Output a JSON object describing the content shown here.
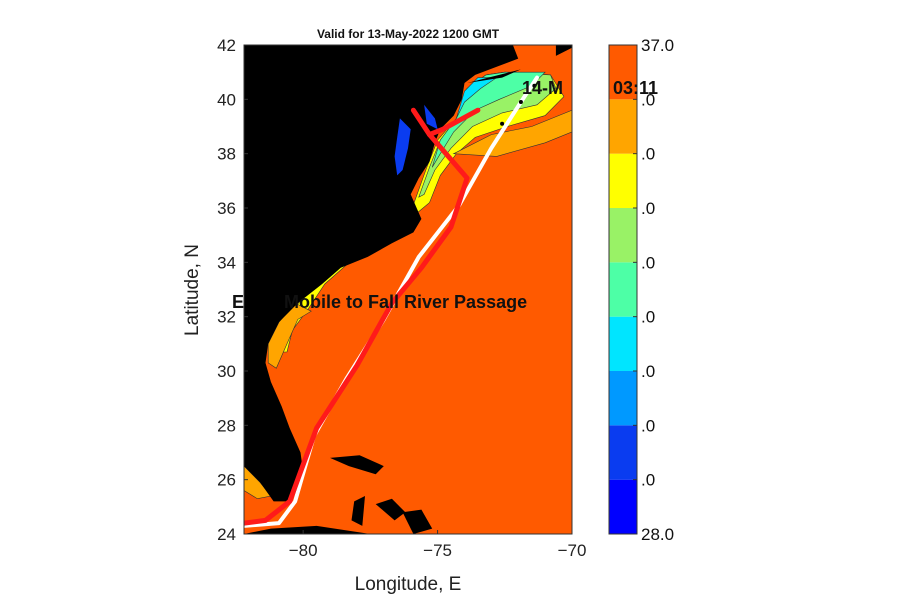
{
  "title": "Valid for 13-May-2022 1200 GMT",
  "xlabel": "Longitude, E",
  "ylabel": "Latitude, N",
  "xlim": [
    -82.2,
    -70
  ],
  "ylim": [
    24,
    42
  ],
  "xticks": [
    -80,
    -75,
    -70
  ],
  "yticks": [
    24,
    26,
    28,
    30,
    32,
    34,
    36,
    38,
    40,
    42
  ],
  "overlay_passage_text": "E        Mobile to Fall River Passage",
  "overlay_time_text": "14-M          03:11",
  "colorbar": {
    "min": 28.0,
    "max": 37.0,
    "tick_labels": [
      "28.0",
      ".0",
      ".0",
      ".0",
      ".0",
      ".0",
      ".0",
      ".0",
      ".0",
      "37.0"
    ],
    "levels": [
      {
        "from": 28,
        "to": 29,
        "color": "#0000ff"
      },
      {
        "from": 29,
        "to": 30,
        "color": "#0a3cf0"
      },
      {
        "from": 30,
        "to": 31,
        "color": "#0099ff"
      },
      {
        "from": 31,
        "to": 32,
        "color": "#00e5ff"
      },
      {
        "from": 32,
        "to": 33,
        "color": "#4dffa6"
      },
      {
        "from": 33,
        "to": 34,
        "color": "#99f266"
      },
      {
        "from": 34,
        "to": 35,
        "color": "#ffff00"
      },
      {
        "from": 35,
        "to": 36,
        "color": "#ffa500"
      },
      {
        "from": 36,
        "to": 37,
        "color": "#ff5a00"
      }
    ]
  },
  "colors": {
    "land": "#000000",
    "ocean": "#ff5a00",
    "route_actual": "#ff1a1a",
    "route_planned": "#ffffff"
  },
  "route_planned": [
    [
      -82.2,
      24.3
    ],
    [
      -80.9,
      24.4
    ],
    [
      -80.3,
      25.2
    ],
    [
      -79.6,
      27.6
    ],
    [
      -78.4,
      29.7
    ],
    [
      -77.0,
      31.9
    ],
    [
      -75.7,
      34.2
    ],
    [
      -74.2,
      36.1
    ],
    [
      -73.0,
      38.2
    ],
    [
      -71.9,
      39.9
    ],
    [
      -71.3,
      40.8
    ]
  ],
  "route_actual": [
    [
      -82.2,
      24.4
    ],
    [
      -81.4,
      24.5
    ],
    [
      -80.5,
      25.2
    ],
    [
      -79.5,
      27.9
    ],
    [
      -78.0,
      30.2
    ],
    [
      -76.7,
      32.5
    ],
    [
      -75.6,
      33.8
    ],
    [
      -74.5,
      35.3
    ],
    [
      -73.9,
      37.1
    ],
    [
      -75.3,
      38.7
    ],
    [
      -74.8,
      38.9
    ],
    [
      -73.5,
      39.6
    ]
  ],
  "route_actual_branch": [
    [
      -75.3,
      38.7
    ],
    [
      -75.9,
      39.6
    ]
  ],
  "track_dots": [
    [
      -71.4,
      40.5
    ],
    [
      -71.9,
      39.9
    ],
    [
      -72.6,
      39.1
    ]
  ],
  "land_shapes": {
    "mainland": [
      [
        -82.2,
        42
      ],
      [
        -72.2,
        42
      ],
      [
        -72.0,
        41.5
      ],
      [
        -72.8,
        41.2
      ],
      [
        -73.6,
        40.9
      ],
      [
        -74.0,
        40.6
      ],
      [
        -74.1,
        40.0
      ],
      [
        -74.4,
        39.4
      ],
      [
        -74.9,
        38.9
      ],
      [
        -75.1,
        38.4
      ],
      [
        -75.3,
        37.7
      ],
      [
        -75.7,
        37.1
      ],
      [
        -76.0,
        36.5
      ],
      [
        -75.6,
        35.6
      ],
      [
        -75.9,
        35.1
      ],
      [
        -76.7,
        34.7
      ],
      [
        -77.6,
        34.2
      ],
      [
        -78.6,
        33.8
      ],
      [
        -79.3,
        33.2
      ],
      [
        -80.2,
        32.5
      ],
      [
        -80.9,
        31.8
      ],
      [
        -81.3,
        31.0
      ],
      [
        -81.4,
        30.3
      ],
      [
        -81.2,
        29.6
      ],
      [
        -80.8,
        28.7
      ],
      [
        -80.5,
        27.9
      ],
      [
        -80.1,
        27.0
      ],
      [
        -80.0,
        26.3
      ],
      [
        -80.2,
        25.6
      ],
      [
        -80.6,
        25.2
      ],
      [
        -81.1,
        25.2
      ],
      [
        -81.6,
        25.9
      ],
      [
        -82.2,
        26.5
      ]
    ],
    "long_island": [
      [
        -73.9,
        40.6
      ],
      [
        -71.9,
        41.1
      ],
      [
        -72.6,
        40.8
      ]
    ],
    "cape_cod": [
      [
        -70.6,
        41.6
      ],
      [
        -70.0,
        41.9
      ],
      [
        -70.0,
        42.0
      ],
      [
        -70.6,
        42.0
      ]
    ],
    "bahamas_1": [
      [
        -79.0,
        26.8
      ],
      [
        -77.9,
        26.9
      ],
      [
        -77.0,
        26.5
      ],
      [
        -77.3,
        26.2
      ],
      [
        -78.3,
        26.5
      ]
    ],
    "bahamas_2": [
      [
        -78.1,
        25.2
      ],
      [
        -77.7,
        25.4
      ],
      [
        -77.8,
        24.3
      ],
      [
        -78.2,
        24.5
      ]
    ],
    "bahamas_3": [
      [
        -77.3,
        25.1
      ],
      [
        -76.7,
        25.3
      ],
      [
        -76.2,
        24.8
      ],
      [
        -76.6,
        24.5
      ]
    ],
    "bahamas_4": [
      [
        -76.3,
        24.8
      ],
      [
        -75.6,
        24.9
      ],
      [
        -75.2,
        24.2
      ],
      [
        -75.9,
        24.0
      ]
    ],
    "cuba": [
      [
        -82.2,
        24.0
      ],
      [
        -77.5,
        24.0
      ],
      [
        -79.5,
        24.3
      ],
      [
        -81.2,
        24.2
      ]
    ]
  },
  "bays": {
    "chesapeake": [
      [
        -76.4,
        39.3
      ],
      [
        -76.0,
        38.9
      ],
      [
        -76.1,
        38.2
      ],
      [
        -76.3,
        37.4
      ],
      [
        -76.5,
        37.2
      ],
      [
        -76.6,
        37.9
      ],
      [
        -76.5,
        38.6
      ]
    ],
    "delaware": [
      [
        -75.5,
        39.8
      ],
      [
        -75.1,
        39.3
      ],
      [
        -75.0,
        38.9
      ],
      [
        -75.4,
        39.1
      ]
    ]
  },
  "shelf_bands": [
    {
      "color": "#ffff00",
      "poly": [
        [
          -72.5,
          41.0
        ],
        [
          -70.8,
          40.9
        ],
        [
          -70.3,
          40.1
        ],
        [
          -71.0,
          39.4
        ],
        [
          -72.4,
          39.0
        ],
        [
          -73.6,
          38.6
        ],
        [
          -74.3,
          38.0
        ],
        [
          -74.9,
          37.2
        ],
        [
          -75.3,
          36.2
        ],
        [
          -75.9,
          35.7
        ],
        [
          -76.3,
          35.0
        ],
        [
          -77.3,
          34.4
        ],
        [
          -78.4,
          33.9
        ],
        [
          -79.2,
          33.2
        ],
        [
          -79.8,
          32.3
        ],
        [
          -80.4,
          31.5
        ],
        [
          -80.6,
          30.7
        ],
        [
          -80.9,
          30.7
        ],
        [
          -80.8,
          31.7
        ],
        [
          -80.1,
          32.6
        ],
        [
          -79.2,
          33.4
        ],
        [
          -78.4,
          34.0
        ],
        [
          -77.2,
          34.7
        ],
        [
          -76.2,
          35.3
        ],
        [
          -75.8,
          36.4
        ],
        [
          -75.4,
          37.5
        ],
        [
          -75.0,
          38.5
        ],
        [
          -74.3,
          39.3
        ],
        [
          -73.9,
          40.4
        ],
        [
          -73.2,
          40.9
        ]
      ]
    },
    {
      "color": "#99f266",
      "poly": [
        [
          -72.5,
          41.0
        ],
        [
          -70.8,
          40.9
        ],
        [
          -70.6,
          40.4
        ],
        [
          -71.3,
          39.8
        ],
        [
          -72.6,
          39.5
        ],
        [
          -73.7,
          39.0
        ],
        [
          -74.5,
          38.2
        ],
        [
          -75.1,
          37.4
        ],
        [
          -75.5,
          36.5
        ],
        [
          -75.7,
          36.4
        ],
        [
          -75.3,
          37.5
        ],
        [
          -74.9,
          38.5
        ],
        [
          -74.3,
          39.3
        ],
        [
          -73.9,
          40.4
        ],
        [
          -73.2,
          40.9
        ]
      ]
    },
    {
      "color": "#4dffa6",
      "poly": [
        [
          -72.5,
          41.0
        ],
        [
          -71.0,
          41.0
        ],
        [
          -71.5,
          40.5
        ],
        [
          -72.7,
          40.0
        ],
        [
          -73.6,
          39.6
        ],
        [
          -74.4,
          38.8
        ],
        [
          -74.9,
          38.0
        ],
        [
          -75.2,
          37.5
        ],
        [
          -74.9,
          38.5
        ],
        [
          -74.3,
          39.3
        ],
        [
          -73.9,
          40.4
        ],
        [
          -73.2,
          40.9
        ]
      ]
    },
    {
      "color": "#00e5ff",
      "poly": [
        [
          -73.5,
          40.8
        ],
        [
          -72.8,
          40.8
        ],
        [
          -73.4,
          40.4
        ],
        [
          -74.0,
          39.9
        ],
        [
          -74.3,
          39.3
        ],
        [
          -74.0,
          40.3
        ]
      ]
    },
    {
      "color": "#ffa500",
      "poly": [
        [
          -81.3,
          30.3
        ],
        [
          -81.0,
          30.1
        ],
        [
          -80.6,
          31.0
        ],
        [
          -80.2,
          31.9
        ],
        [
          -79.7,
          32.2
        ],
        [
          -80.3,
          32.5
        ],
        [
          -80.9,
          31.8
        ],
        [
          -81.3,
          31.0
        ]
      ]
    },
    {
      "color": "#ffa500",
      "poly": [
        [
          -82.2,
          26.5
        ],
        [
          -81.6,
          25.9
        ],
        [
          -81.2,
          25.4
        ],
        [
          -81.7,
          25.3
        ],
        [
          -82.2,
          25.6
        ]
      ]
    },
    {
      "color": "#ffa500",
      "poly": [
        [
          -74.4,
          38.0
        ],
        [
          -72.8,
          37.9
        ],
        [
          -71.0,
          38.4
        ],
        [
          -70.0,
          38.8
        ],
        [
          -70.0,
          39.6
        ],
        [
          -71.5,
          39.0
        ],
        [
          -73.0,
          38.7
        ]
      ]
    }
  ]
}
